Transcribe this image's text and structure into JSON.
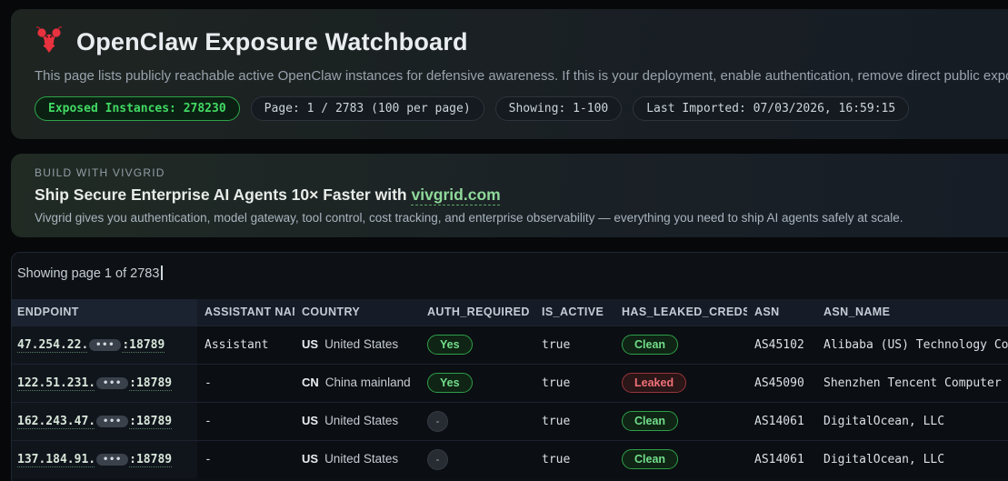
{
  "header": {
    "title": "OpenClaw Exposure Watchboard",
    "subtitle": "This page lists publicly reachable active OpenClaw instances for defensive awareness. If this is your deployment, enable authentication, remove direct public exposure, and patch immediately.",
    "stats": [
      {
        "label": "Exposed Instances: 278230",
        "variant": "green"
      },
      {
        "label": "Page: 1 / 2783 (100 per page)",
        "variant": "default"
      },
      {
        "label": "Showing: 1-100",
        "variant": "default"
      },
      {
        "label": "Last Imported: 07/03/2026, 16:59:15",
        "variant": "default"
      }
    ]
  },
  "banner": {
    "eyebrow": "BUILD WITH VIVGRID",
    "headline_prefix": "Ship Secure Enterprise AI Agents 10× Faster with ",
    "headline_link": "vivgrid.com",
    "description": "Vivgrid gives you authentication, model gateway, tool control, cost tracking, and enterprise observability — everything you need to ship AI agents safely at scale."
  },
  "table": {
    "caption": "Showing page 1 of 2783",
    "columns": [
      "ENDPOINT",
      "ASSISTANT NAME",
      "COUNTRY",
      "AUTH_REQUIRED",
      "IS_ACTIVE",
      "HAS_LEAKED_CREDS",
      "ASN",
      "ASN_NAME"
    ],
    "rows": [
      {
        "ip_prefix": "47.254.22.",
        "masked": "•••",
        "port": ":18789",
        "assistant": "Assistant",
        "country_code": "US",
        "country": "United States",
        "auth": "Yes",
        "is_active": "true",
        "creds": "Clean",
        "asn": "AS45102",
        "asn_name": "Alibaba (US) Technology Co., Lt"
      },
      {
        "ip_prefix": "122.51.231.",
        "masked": "•••",
        "port": ":18789",
        "assistant": "-",
        "country_code": "CN",
        "country": "China mainland",
        "auth": "Yes",
        "is_active": "true",
        "creds": "Leaked",
        "asn": "AS45090",
        "asn_name": "Shenzhen Tencent Computer Syst"
      },
      {
        "ip_prefix": "162.243.47.",
        "masked": "•••",
        "port": ":18789",
        "assistant": "-",
        "country_code": "US",
        "country": "United States",
        "auth": "-",
        "is_active": "true",
        "creds": "Clean",
        "asn": "AS14061",
        "asn_name": "DigitalOcean, LLC"
      },
      {
        "ip_prefix": "137.184.91.",
        "masked": "•••",
        "port": ":18789",
        "assistant": "-",
        "country_code": "US",
        "country": "United States",
        "auth": "-",
        "is_active": "true",
        "creds": "Clean",
        "asn": "AS14061",
        "asn_name": "DigitalOcean, LLC"
      }
    ]
  },
  "colors": {
    "accent_green": "#3fb950",
    "status_clean": "#72de8b",
    "status_leaked": "#f07178",
    "exposed_count": "#42d963"
  }
}
